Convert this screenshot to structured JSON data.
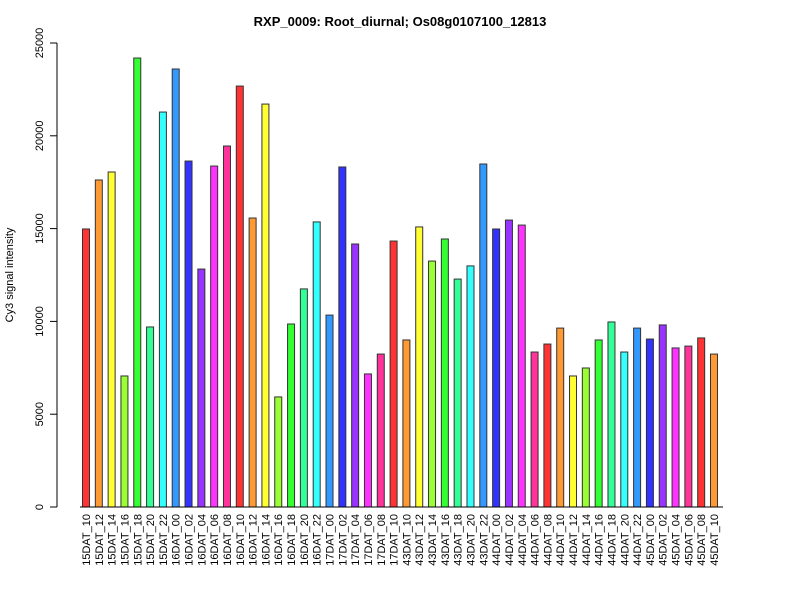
{
  "chart_data": {
    "type": "bar",
    "title": "RXP_0009: Root_diurnal; Os08g0107100_12813",
    "xlabel": "",
    "ylabel": "Cy3 signal intensity",
    "ylim": [
      0,
      25000
    ],
    "yticks": [
      0,
      5000,
      10000,
      15000,
      20000,
      25000
    ],
    "grid": false,
    "categories": [
      "15DAT_10",
      "15DAT_12",
      "15DAT_14",
      "15DAT_16",
      "15DAT_18",
      "15DAT_20",
      "15DAT_22",
      "16DAT_00",
      "16DAT_02",
      "16DAT_04",
      "16DAT_06",
      "16DAT_08",
      "16DAT_10",
      "16DAT_12",
      "16DAT_14",
      "16DAT_16",
      "16DAT_18",
      "16DAT_20",
      "16DAT_22",
      "17DAT_00",
      "17DAT_02",
      "17DAT_04",
      "17DAT_06",
      "17DAT_08",
      "17DAT_10",
      "43DAT_10",
      "43DAT_12",
      "43DAT_14",
      "43DAT_16",
      "43DAT_18",
      "43DAT_20",
      "43DAT_22",
      "44DAT_00",
      "44DAT_02",
      "44DAT_04",
      "44DAT_06",
      "44DAT_08",
      "44DAT_10",
      "44DAT_12",
      "44DAT_14",
      "44DAT_16",
      "44DAT_18",
      "44DAT_20",
      "44DAT_22",
      "45DAT_00",
      "45DAT_02",
      "45DAT_04",
      "45DAT_06",
      "45DAT_08",
      "45DAT_10"
    ],
    "values": [
      14980,
      17620,
      18050,
      7060,
      24190,
      9700,
      21280,
      23600,
      18640,
      12820,
      18370,
      19450,
      22680,
      15570,
      21710,
      5930,
      9860,
      11750,
      15360,
      10340,
      18320,
      14170,
      7170,
      8240,
      14330,
      9000,
      15090,
      13250,
      14440,
      12280,
      12990,
      18480,
      14980,
      15460,
      15190,
      8350,
      8780,
      9640,
      7060,
      7490,
      9000,
      9970,
      8350,
      9640,
      9050,
      9810,
      8570,
      8670,
      9110,
      8240
    ],
    "colors": [
      "#FF3333",
      "#FF9933",
      "#FFFF33",
      "#99FF33",
      "#33FF33",
      "#33FF99",
      "#33FFFF",
      "#3399FF",
      "#3333FF",
      "#9933FF",
      "#FF33FF",
      "#FF3399"
    ]
  }
}
